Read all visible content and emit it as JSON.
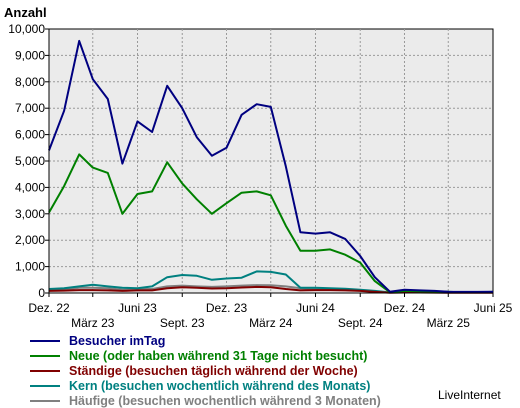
{
  "chart_data": {
    "type": "line",
    "ylabel": "Anzahl",
    "ylim": [
      0,
      10000
    ],
    "yticks": [
      0,
      1000,
      2000,
      3000,
      4000,
      5000,
      6000,
      7000,
      8000,
      9000,
      10000
    ],
    "ytick_labels": [
      "0",
      "1,000",
      "2,000",
      "3,000",
      "4,000",
      "5,000",
      "6,000",
      "7,000",
      "8,000",
      "9,000",
      "10,000"
    ],
    "xlim": [
      "2022-12-01",
      "2025-06-01"
    ],
    "xticks": [
      {
        "label": "Dez. 22",
        "date": "2022-12-01",
        "row": 1
      },
      {
        "label": "März 23",
        "date": "2023-03-01",
        "row": 2
      },
      {
        "label": "Juni 23",
        "date": "2023-06-01",
        "row": 1
      },
      {
        "label": "Sept. 23",
        "date": "2023-09-01",
        "row": 2
      },
      {
        "label": "Dez. 23",
        "date": "2023-12-01",
        "row": 1
      },
      {
        "label": "März 24",
        "date": "2024-03-01",
        "row": 2
      },
      {
        "label": "Juni 24",
        "date": "2024-06-01",
        "row": 1
      },
      {
        "label": "Sept. 24",
        "date": "2024-09-01",
        "row": 2
      },
      {
        "label": "Dez. 24",
        "date": "2024-12-01",
        "row": 1
      },
      {
        "label": "März 25",
        "date": "2025-03-01",
        "row": 2
      },
      {
        "label": "Juni 25",
        "date": "2025-06-01",
        "row": 1
      }
    ],
    "grid": true,
    "x": [
      "2022-12-01",
      "2023-01-01",
      "2023-02-01",
      "2023-03-01",
      "2023-04-01",
      "2023-05-01",
      "2023-06-01",
      "2023-07-01",
      "2023-08-01",
      "2023-09-01",
      "2023-10-01",
      "2023-11-01",
      "2023-12-01",
      "2024-01-01",
      "2024-02-01",
      "2024-03-01",
      "2024-04-01",
      "2024-05-01",
      "2024-06-01",
      "2024-07-01",
      "2024-08-01",
      "2024-09-01",
      "2024-10-01",
      "2024-11-01",
      "2024-12-01",
      "2025-01-01",
      "2025-02-01",
      "2025-03-01",
      "2025-04-01",
      "2025-05-01",
      "2025-06-01"
    ],
    "series": [
      {
        "name": "Besucher imTag",
        "color": "#000080",
        "values": [
          5400,
          6900,
          9550,
          8100,
          7350,
          4900,
          6500,
          6100,
          7850,
          7000,
          5900,
          5200,
          5500,
          6750,
          7150,
          7050,
          4800,
          2300,
          2250,
          2300,
          2050,
          1400,
          600,
          50,
          120,
          100,
          80,
          50,
          40,
          40,
          50
        ]
      },
      {
        "name": "Neue (oder haben während 31 Tage nicht besucht)",
        "color": "#008000",
        "values": [
          3050,
          4050,
          5250,
          4750,
          4550,
          3000,
          3750,
          3850,
          4950,
          4150,
          3550,
          3000,
          3400,
          3800,
          3850,
          3700,
          2550,
          1600,
          1600,
          1650,
          1450,
          1150,
          450,
          30,
          80,
          70,
          60,
          40,
          30,
          30,
          40
        ]
      },
      {
        "name": "Ständige (besuchen täglich während der Woche)",
        "color": "#800000",
        "values": [
          80,
          90,
          110,
          110,
          100,
          80,
          100,
          100,
          180,
          220,
          200,
          170,
          180,
          210,
          230,
          220,
          150,
          100,
          110,
          110,
          100,
          80,
          40,
          10,
          20,
          20,
          15,
          10,
          10,
          10,
          10
        ]
      },
      {
        "name": "Kern (besuchen wochentlich während des Monats)",
        "color": "#008080",
        "values": [
          150,
          180,
          250,
          310,
          250,
          200,
          180,
          250,
          600,
          680,
          650,
          500,
          550,
          580,
          820,
          800,
          700,
          200,
          200,
          180,
          160,
          120,
          80,
          20,
          60,
          60,
          50,
          40,
          30,
          30,
          30
        ]
      },
      {
        "name": "Häufige (besuchen wochentlich während 3 Monaten)",
        "color": "#808080",
        "values": [
          100,
          120,
          200,
          200,
          180,
          120,
          150,
          150,
          250,
          280,
          250,
          230,
          250,
          280,
          300,
          290,
          250,
          180,
          150,
          150,
          140,
          100,
          60,
          20,
          40,
          40,
          30,
          20,
          20,
          20,
          20
        ]
      }
    ]
  },
  "credit": "LiveInternet"
}
